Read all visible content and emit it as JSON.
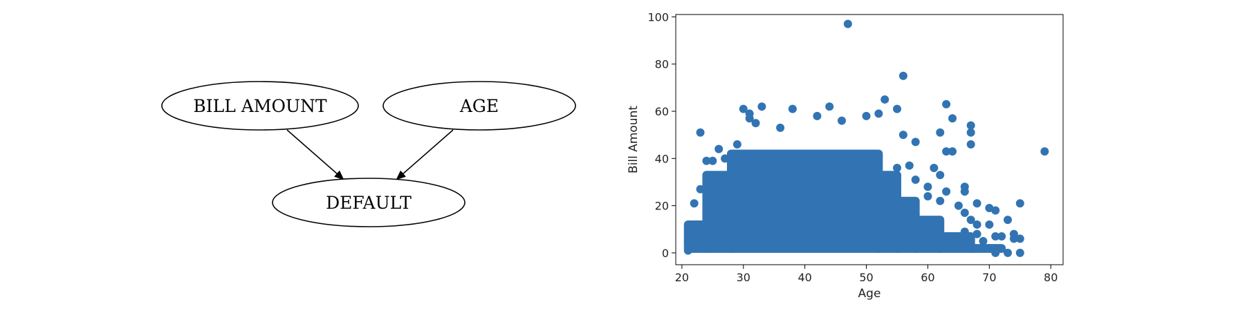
{
  "diagram": {
    "nodes": [
      {
        "id": "bill_amount",
        "label": "BILL AMOUNT"
      },
      {
        "id": "age",
        "label": "AGE"
      },
      {
        "id": "default",
        "label": "DEFAULT"
      }
    ],
    "edges": [
      {
        "from": "bill_amount",
        "to": "default"
      },
      {
        "from": "age",
        "to": "default"
      }
    ]
  },
  "chart_data": {
    "type": "scatter",
    "title": "",
    "xlabel": "Age",
    "ylabel": "Bill Amount",
    "xlim": [
      19,
      82
    ],
    "ylim": [
      -5,
      101
    ],
    "xticks": [
      20,
      30,
      40,
      50,
      60,
      70,
      80
    ],
    "yticks": [
      0,
      20,
      40,
      60,
      80,
      100
    ],
    "grid": false,
    "legend": "none",
    "marker_color": "#3274b3",
    "points": [
      [
        47,
        97
      ],
      [
        56,
        75
      ],
      [
        79,
        43
      ],
      [
        53,
        65
      ],
      [
        63,
        63
      ],
      [
        44,
        62
      ],
      [
        33,
        62
      ],
      [
        30,
        61
      ],
      [
        38,
        61
      ],
      [
        55,
        61
      ],
      [
        23,
        51
      ],
      [
        31,
        59
      ],
      [
        52,
        59
      ],
      [
        42,
        58
      ],
      [
        50,
        58
      ],
      [
        64,
        57
      ],
      [
        31,
        57
      ],
      [
        46,
        56
      ],
      [
        67,
        54
      ],
      [
        32,
        55
      ],
      [
        36,
        53
      ],
      [
        67,
        51
      ],
      [
        62,
        51
      ],
      [
        56,
        50
      ],
      [
        67,
        46
      ],
      [
        58,
        47
      ],
      [
        63,
        43
      ],
      [
        64,
        43
      ],
      [
        61,
        36
      ],
      [
        62,
        33
      ],
      [
        60,
        28
      ],
      [
        63,
        26
      ],
      [
        66,
        28
      ],
      [
        66,
        26
      ],
      [
        68,
        21
      ],
      [
        75,
        21
      ],
      [
        70,
        19
      ],
      [
        71,
        18
      ],
      [
        73,
        14
      ],
      [
        68,
        12
      ],
      [
        70,
        12
      ],
      [
        74,
        8
      ],
      [
        71,
        7
      ],
      [
        72,
        7
      ],
      [
        74,
        6
      ],
      [
        75,
        6
      ],
      [
        70,
        2
      ],
      [
        73,
        0
      ],
      [
        75,
        0
      ],
      [
        71,
        0
      ],
      [
        26,
        44
      ],
      [
        24,
        39
      ],
      [
        25,
        39
      ],
      [
        27,
        40
      ],
      [
        29,
        46
      ],
      [
        22,
        21
      ],
      [
        23,
        27
      ],
      [
        21,
        5
      ],
      [
        21,
        1
      ],
      [
        22,
        8
      ],
      [
        57,
        37
      ],
      [
        55,
        36
      ],
      [
        58,
        31
      ],
      [
        60,
        24
      ],
      [
        62,
        22
      ],
      [
        65,
        20
      ],
      [
        66,
        17
      ],
      [
        67,
        14
      ],
      [
        68,
        8
      ],
      [
        69,
        5
      ],
      [
        66,
        9
      ]
    ],
    "dense_regions": [
      {
        "x_from": 21,
        "x_to": 24,
        "y_from": 0,
        "y_to": 12
      },
      {
        "x_from": 24,
        "x_to": 28,
        "y_from": 0,
        "y_to": 33
      },
      {
        "x_from": 28,
        "x_to": 52,
        "y_from": 0,
        "y_to": 42
      },
      {
        "x_from": 52,
        "x_to": 55,
        "y_from": 0,
        "y_to": 33
      },
      {
        "x_from": 55,
        "x_to": 58,
        "y_from": 0,
        "y_to": 22
      },
      {
        "x_from": 58,
        "x_to": 62,
        "y_from": 0,
        "y_to": 14
      },
      {
        "x_from": 62,
        "x_to": 67,
        "y_from": 0,
        "y_to": 7
      },
      {
        "x_from": 67,
        "x_to": 72,
        "y_from": 0,
        "y_to": 2
      }
    ]
  }
}
